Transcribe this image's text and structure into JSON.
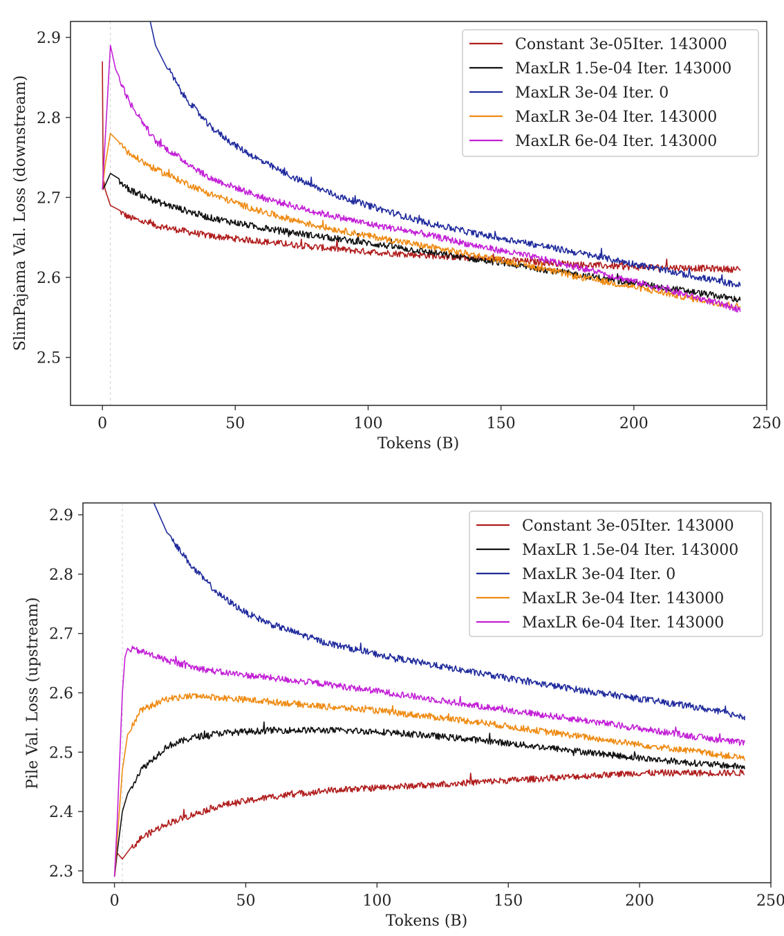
{
  "colors": {
    "Constant 3e-05Iter. 143000": "#b01c1c",
    "MaxLR 1.5e-04 Iter. 143000": "#111111",
    "MaxLR 3e-04 Iter. 0": "#1f2a9c",
    "MaxLR 3e-04 Iter. 143000": "#ee8a12",
    "MaxLR 6e-04 Iter. 143000": "#c21fd6",
    "frame": "#333333",
    "legend_border": "#cccccc",
    "vline": "#d0d0d0"
  },
  "chart_data": [
    {
      "type": "line",
      "title": "",
      "xlabel": "Tokens (B)",
      "ylabel": "SlimPajama Val. Loss (downstream)",
      "xlim": [
        -12,
        250
      ],
      "ylim": [
        2.44,
        2.92
      ],
      "xticks": [
        0,
        50,
        100,
        150,
        200,
        250
      ],
      "yticks": [
        2.5,
        2.6,
        2.7,
        2.8,
        2.9
      ],
      "xtick_labels": [
        "0",
        "50",
        "100",
        "150",
        "200",
        "250"
      ],
      "ytick_labels": [
        "2.5",
        "2.6",
        "2.7",
        "2.8",
        "2.9"
      ],
      "vline_x": 3,
      "legend": "top-right",
      "legend_labels": [
        "Constant 3e-05Iter. 143000",
        "MaxLR 1.5e-04 Iter. 143000",
        "MaxLR 3e-04 Iter. 0",
        "MaxLR 3e-04 Iter. 143000",
        "MaxLR 6e-04 Iter. 143000"
      ],
      "series": [
        {
          "name": "Constant 3e-05Iter. 143000",
          "x": [
            0,
            0.3,
            0.6,
            1,
            3,
            10,
            20,
            40,
            60,
            80,
            100,
            120,
            140,
            160,
            180,
            200,
            220,
            240
          ],
          "y": [
            2.87,
            2.71,
            2.72,
            2.71,
            2.69,
            2.675,
            2.665,
            2.652,
            2.645,
            2.638,
            2.632,
            2.628,
            2.624,
            2.62,
            2.616,
            2.613,
            2.612,
            2.61
          ]
        },
        {
          "name": "MaxLR 1.5e-04 Iter. 143000",
          "x": [
            0,
            1,
            3,
            10,
            20,
            40,
            60,
            80,
            100,
            120,
            140,
            160,
            180,
            200,
            220,
            240
          ],
          "y": [
            2.71,
            2.715,
            2.73,
            2.71,
            2.695,
            2.675,
            2.662,
            2.652,
            2.643,
            2.633,
            2.623,
            2.613,
            2.603,
            2.593,
            2.583,
            2.572
          ]
        },
        {
          "name": "MaxLR 3e-04 Iter. 0",
          "x": [
            18,
            20,
            30,
            40,
            50,
            60,
            70,
            80,
            90,
            100,
            120,
            140,
            160,
            180,
            200,
            220,
            240
          ],
          "y": [
            2.92,
            2.89,
            2.83,
            2.79,
            2.765,
            2.745,
            2.728,
            2.713,
            2.7,
            2.69,
            2.67,
            2.655,
            2.643,
            2.63,
            2.617,
            2.603,
            2.59
          ]
        },
        {
          "name": "MaxLR 3e-04 Iter. 143000",
          "x": [
            0,
            1,
            3,
            10,
            20,
            40,
            60,
            80,
            100,
            120,
            140,
            160,
            180,
            200,
            220,
            240
          ],
          "y": [
            2.71,
            2.74,
            2.78,
            2.755,
            2.735,
            2.705,
            2.682,
            2.665,
            2.652,
            2.64,
            2.628,
            2.615,
            2.6,
            2.588,
            2.575,
            2.563
          ]
        },
        {
          "name": "MaxLR 6e-04 Iter. 143000",
          "x": [
            0,
            1,
            3,
            5,
            10,
            20,
            40,
            60,
            80,
            100,
            120,
            140,
            160,
            180,
            200,
            220,
            240
          ],
          "y": [
            2.71,
            2.77,
            2.89,
            2.86,
            2.82,
            2.77,
            2.725,
            2.7,
            2.682,
            2.667,
            2.655,
            2.64,
            2.627,
            2.612,
            2.595,
            2.578,
            2.56
          ]
        }
      ]
    },
    {
      "type": "line",
      "title": "",
      "xlabel": "Tokens (B)",
      "ylabel": "Pile Val. Loss (upstream)",
      "xlim": [
        -12,
        250
      ],
      "ylim": [
        2.28,
        2.92
      ],
      "xticks": [
        0,
        50,
        100,
        150,
        200,
        250
      ],
      "yticks": [
        2.3,
        2.4,
        2.5,
        2.6,
        2.7,
        2.8,
        2.9
      ],
      "xtick_labels": [
        "0",
        "50",
        "100",
        "150",
        "200",
        "250"
      ],
      "ytick_labels": [
        "2.3",
        "2.4",
        "2.5",
        "2.6",
        "2.7",
        "2.8",
        "2.9"
      ],
      "vline_x": 3,
      "legend": "top-right",
      "legend_labels": [
        "Constant 3e-05Iter. 143000",
        "MaxLR 1.5e-04 Iter. 143000",
        "MaxLR 3e-04 Iter. 0",
        "MaxLR 3e-04 Iter. 143000",
        "MaxLR 6e-04 Iter. 143000"
      ],
      "series": [
        {
          "name": "Constant 3e-05Iter. 143000",
          "x": [
            0,
            1,
            3,
            10,
            20,
            30,
            40,
            60,
            80,
            100,
            120,
            140,
            160,
            180,
            200,
            220,
            240
          ],
          "y": [
            2.29,
            2.33,
            2.32,
            2.355,
            2.38,
            2.395,
            2.41,
            2.425,
            2.435,
            2.44,
            2.445,
            2.45,
            2.455,
            2.46,
            2.465,
            2.465,
            2.465
          ]
        },
        {
          "name": "MaxLR 1.5e-04 Iter. 143000",
          "x": [
            0,
            1,
            3,
            5,
            10,
            20,
            30,
            40,
            60,
            80,
            100,
            120,
            140,
            160,
            180,
            200,
            220,
            240
          ],
          "y": [
            2.29,
            2.33,
            2.4,
            2.43,
            2.47,
            2.51,
            2.525,
            2.532,
            2.537,
            2.537,
            2.535,
            2.528,
            2.52,
            2.51,
            2.5,
            2.49,
            2.482,
            2.475
          ]
        },
        {
          "name": "MaxLR 3e-04 Iter. 0",
          "x": [
            15,
            20,
            30,
            40,
            50,
            60,
            70,
            80,
            100,
            120,
            140,
            160,
            180,
            200,
            220,
            240
          ],
          "y": [
            2.92,
            2.87,
            2.81,
            2.765,
            2.735,
            2.715,
            2.7,
            2.685,
            2.665,
            2.648,
            2.632,
            2.617,
            2.603,
            2.59,
            2.577,
            2.56
          ]
        },
        {
          "name": "MaxLR 3e-04 Iter. 143000",
          "x": [
            0,
            1,
            3,
            5,
            10,
            20,
            30,
            40,
            60,
            80,
            100,
            120,
            140,
            160,
            180,
            200,
            220,
            240
          ],
          "y": [
            2.29,
            2.35,
            2.47,
            2.53,
            2.57,
            2.59,
            2.595,
            2.592,
            2.585,
            2.577,
            2.57,
            2.56,
            2.55,
            2.537,
            2.525,
            2.513,
            2.502,
            2.49
          ]
        },
        {
          "name": "MaxLR 6e-04 Iter. 143000",
          "x": [
            0,
            1,
            3,
            4,
            5,
            10,
            20,
            30,
            40,
            60,
            80,
            100,
            120,
            140,
            160,
            180,
            200,
            220,
            240
          ],
          "y": [
            2.29,
            2.38,
            2.6,
            2.66,
            2.675,
            2.67,
            2.655,
            2.643,
            2.635,
            2.625,
            2.615,
            2.603,
            2.59,
            2.577,
            2.565,
            2.553,
            2.54,
            2.527,
            2.515
          ]
        }
      ]
    }
  ]
}
